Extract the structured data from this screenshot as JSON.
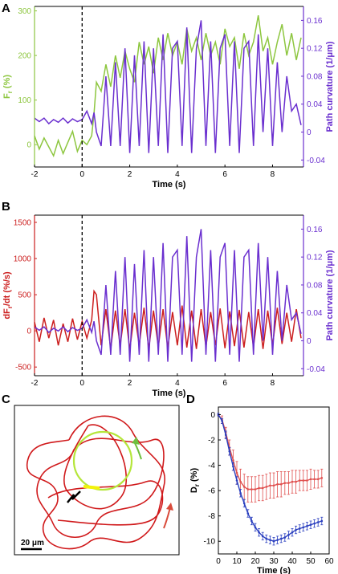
{
  "chart_data": [
    {
      "panel": "A",
      "type": "line",
      "xlabel": "Time (s)",
      "ylabel_left": "F",
      "ylabel_left_sub": "r",
      "ylabel_left_suffix": " (%)",
      "ylabel_right": "Path curvature (1/μm)",
      "xlim": [
        -2,
        9.3
      ],
      "ylim_left": [
        -50,
        310
      ],
      "ylim_right": [
        -0.05,
        0.18
      ],
      "xticks": [
        -2,
        0,
        2,
        4,
        6,
        8
      ],
      "yticks_left": [
        0,
        100,
        200,
        300
      ],
      "yticks_right": [
        -0.04,
        0,
        0.04,
        0.08,
        0.12,
        0.16
      ],
      "stimulus_line_x": 0,
      "series": [
        {
          "axis": "left",
          "color": "#8dc63f",
          "x": [
            -2,
            -1.8,
            -1.6,
            -1.4,
            -1.2,
            -1.0,
            -0.8,
            -0.6,
            -0.4,
            -0.2,
            0,
            0.2,
            0.4,
            0.5,
            0.6,
            0.8,
            1.0,
            1.2,
            1.4,
            1.6,
            1.8,
            2.0,
            2.2,
            2.4,
            2.6,
            2.8,
            3.0,
            3.2,
            3.4,
            3.6,
            3.8,
            4.0,
            4.2,
            4.4,
            4.6,
            4.8,
            5.0,
            5.2,
            5.4,
            5.6,
            5.8,
            6.0,
            6.2,
            6.4,
            6.6,
            6.8,
            7.0,
            7.2,
            7.4,
            7.6,
            7.8,
            8.0,
            8.2,
            8.4,
            8.6,
            8.8,
            9.0,
            9.2
          ],
          "values": [
            20,
            -10,
            15,
            -5,
            -25,
            10,
            -20,
            5,
            30,
            -15,
            10,
            0,
            20,
            70,
            140,
            120,
            180,
            130,
            200,
            150,
            210,
            170,
            140,
            230,
            180,
            220,
            160,
            240,
            190,
            250,
            200,
            230,
            180,
            260,
            210,
            240,
            190,
            250,
            200,
            230,
            180,
            260,
            220,
            240,
            170,
            250,
            200,
            230,
            290,
            210,
            240,
            180,
            230,
            270,
            200,
            250,
            190,
            240
          ]
        },
        {
          "axis": "right",
          "color": "#6a2fcf",
          "x": [
            -2,
            -1.8,
            -1.6,
            -1.4,
            -1.2,
            -1.0,
            -0.8,
            -0.6,
            -0.4,
            -0.2,
            0,
            0.2,
            0.4,
            0.5,
            0.6,
            0.8,
            1.0,
            1.2,
            1.4,
            1.6,
            1.8,
            2.0,
            2.2,
            2.4,
            2.6,
            2.8,
            3.0,
            3.2,
            3.4,
            3.6,
            3.8,
            4.0,
            4.2,
            4.4,
            4.6,
            4.8,
            5.0,
            5.2,
            5.4,
            5.6,
            5.8,
            6.0,
            6.2,
            6.4,
            6.6,
            6.8,
            7.0,
            7.2,
            7.4,
            7.6,
            7.8,
            8.0,
            8.2,
            8.4,
            8.6,
            8.8,
            9.0,
            9.2
          ],
          "values": [
            0.02,
            0.015,
            0.02,
            0.012,
            0.018,
            0.014,
            0.02,
            0.013,
            0.019,
            0.015,
            0.018,
            0.03,
            0.012,
            0.028,
            0.0,
            -0.02,
            0.08,
            -0.02,
            0.1,
            -0.02,
            0.12,
            -0.03,
            0.11,
            -0.02,
            0.13,
            -0.03,
            0.12,
            -0.02,
            0.14,
            -0.03,
            0.12,
            0.13,
            -0.02,
            0.15,
            -0.03,
            0.12,
            0.16,
            -0.02,
            0.13,
            -0.03,
            0.12,
            0.14,
            -0.02,
            0.13,
            -0.03,
            0.12,
            0.13,
            -0.02,
            0.14,
            0.0,
            0.12,
            -0.02,
            0.1,
            0.0,
            0.08,
            0.03,
            0.04,
            0.01
          ]
        }
      ]
    },
    {
      "panel": "B",
      "type": "line",
      "xlabel": "Time (s)",
      "ylabel_left": "dF",
      "ylabel_left_sub": "r",
      "ylabel_left_suffix": "/dt (%/s)",
      "ylabel_right": "Path curvature (1/μm)",
      "xlim": [
        -2,
        9.3
      ],
      "ylim_left": [
        -620,
        1600
      ],
      "ylim_right": [
        -0.05,
        0.18
      ],
      "xticks": [
        -2,
        0,
        2,
        4,
        6,
        8
      ],
      "yticks_left": [
        -500,
        0,
        500,
        1000,
        1500
      ],
      "yticks_right": [
        -0.04,
        0,
        0.04,
        0.08,
        0.12,
        0.16
      ],
      "stimulus_line_x": 0,
      "series": [
        {
          "axis": "left",
          "color": "#cc1f1f",
          "x": [
            -2,
            -1.8,
            -1.6,
            -1.4,
            -1.2,
            -1.0,
            -0.8,
            -0.6,
            -0.4,
            -0.2,
            0,
            0.2,
            0.4,
            0.5,
            0.6,
            0.8,
            1.0,
            1.2,
            1.4,
            1.6,
            1.8,
            2.0,
            2.2,
            2.4,
            2.6,
            2.8,
            3.0,
            3.2,
            3.4,
            3.6,
            3.8,
            4.0,
            4.2,
            4.4,
            4.6,
            4.8,
            5.0,
            5.2,
            5.4,
            5.6,
            5.8,
            6.0,
            6.2,
            6.4,
            6.6,
            6.8,
            7.0,
            7.2,
            7.4,
            7.6,
            7.8,
            8.0,
            8.2,
            8.4,
            8.6,
            8.8,
            9.0,
            9.2
          ],
          "values": [
            120,
            -150,
            180,
            -100,
            150,
            -200,
            100,
            -150,
            170,
            -120,
            130,
            -100,
            150,
            550,
            500,
            -200,
            300,
            -250,
            280,
            -200,
            300,
            -260,
            250,
            -200,
            320,
            -250,
            280,
            -220,
            300,
            -240,
            260,
            -200,
            350,
            -230,
            280,
            -250,
            300,
            -220,
            260,
            -200,
            310,
            -240,
            270,
            -210,
            290,
            -230,
            260,
            -220,
            300,
            -250,
            280,
            -200,
            320,
            -180,
            250,
            -150,
            300,
            -100
          ]
        },
        {
          "axis": "right",
          "color": "#6a2fcf",
          "x": [
            -2,
            -1.8,
            -1.6,
            -1.4,
            -1.2,
            -1.0,
            -0.8,
            -0.6,
            -0.4,
            -0.2,
            0,
            0.2,
            0.4,
            0.5,
            0.6,
            0.8,
            1.0,
            1.2,
            1.4,
            1.6,
            1.8,
            2.0,
            2.2,
            2.4,
            2.6,
            2.8,
            3.0,
            3.2,
            3.4,
            3.6,
            3.8,
            4.0,
            4.2,
            4.4,
            4.6,
            4.8,
            5.0,
            5.2,
            5.4,
            5.6,
            5.8,
            6.0,
            6.2,
            6.4,
            6.6,
            6.8,
            7.0,
            7.2,
            7.4,
            7.6,
            7.8,
            8.0,
            8.2,
            8.4,
            8.6,
            8.8,
            9.0,
            9.2
          ],
          "values": [
            0.02,
            0.015,
            0.02,
            0.012,
            0.018,
            0.014,
            0.02,
            0.013,
            0.019,
            0.015,
            0.018,
            0.03,
            0.012,
            0.028,
            0.0,
            -0.02,
            0.08,
            -0.02,
            0.1,
            -0.02,
            0.12,
            -0.03,
            0.11,
            -0.02,
            0.13,
            -0.03,
            0.12,
            -0.02,
            0.14,
            -0.03,
            0.12,
            0.13,
            -0.02,
            0.15,
            -0.03,
            0.12,
            0.16,
            -0.02,
            0.13,
            -0.03,
            0.12,
            0.14,
            -0.02,
            0.13,
            -0.03,
            0.12,
            0.13,
            -0.02,
            0.14,
            0.0,
            0.12,
            -0.02,
            0.1,
            0.0,
            0.08,
            0.03,
            0.04,
            0.01
          ]
        }
      ]
    },
    {
      "panel": "D",
      "type": "line",
      "xlabel": "Time (s)",
      "ylabel": "D",
      "ylabel_sub": "r",
      "ylabel_suffix": " (%)",
      "xlim": [
        0,
        60
      ],
      "ylim": [
        -11,
        0.6
      ],
      "xticks": [
        0,
        10,
        20,
        30,
        40,
        50,
        60
      ],
      "yticks": [
        0,
        -2,
        -4,
        -6,
        -8,
        -10
      ],
      "series": [
        {
          "color": "#e0504f",
          "x": [
            0,
            2,
            4,
            6,
            8,
            10,
            12,
            14,
            16,
            18,
            20,
            22,
            24,
            26,
            28,
            30,
            32,
            34,
            36,
            38,
            40,
            42,
            44,
            46,
            48,
            50,
            52,
            54,
            56
          ],
          "values": [
            0,
            -0.4,
            -1.4,
            -2.6,
            -3.6,
            -4.6,
            -5.3,
            -5.7,
            -5.9,
            -5.9,
            -5.9,
            -5.8,
            -5.8,
            -5.7,
            -5.6,
            -5.6,
            -5.5,
            -5.5,
            -5.4,
            -5.4,
            -5.3,
            -5.3,
            -5.2,
            -5.2,
            -5.2,
            -5.1,
            -5.1,
            -5.1,
            -5.0
          ],
          "error": [
            0.1,
            0.3,
            0.4,
            0.6,
            0.8,
            0.9,
            1.0,
            1.0,
            1.0,
            1.0,
            1.0,
            1.0,
            1.0,
            1.0,
            1.0,
            1.0,
            1.0,
            1.0,
            0.9,
            0.9,
            0.9,
            0.9,
            0.8,
            0.8,
            0.8,
            0.8,
            0.7,
            0.7,
            0.7
          ]
        },
        {
          "color": "#2a3fbf",
          "x": [
            0,
            2,
            4,
            6,
            8,
            10,
            12,
            14,
            16,
            18,
            20,
            22,
            24,
            26,
            28,
            30,
            32,
            34,
            36,
            38,
            40,
            42,
            44,
            46,
            48,
            50,
            52,
            54,
            56
          ],
          "values": [
            0,
            -0.5,
            -1.6,
            -2.9,
            -4.1,
            -5.2,
            -6.2,
            -7.0,
            -7.8,
            -8.4,
            -8.9,
            -9.3,
            -9.6,
            -9.8,
            -9.9,
            -10.0,
            -9.9,
            -9.8,
            -9.7,
            -9.5,
            -9.3,
            -9.1,
            -9.0,
            -8.9,
            -8.8,
            -8.7,
            -8.6,
            -8.5,
            -8.4
          ],
          "error": [
            0.1,
            0.2,
            0.3,
            0.3,
            0.3,
            0.3,
            0.3,
            0.3,
            0.3,
            0.3,
            0.3,
            0.3,
            0.3,
            0.3,
            0.3,
            0.3,
            0.3,
            0.3,
            0.3,
            0.3,
            0.3,
            0.3,
            0.3,
            0.3,
            0.3,
            0.3,
            0.3,
            0.3,
            0.3
          ]
        }
      ]
    }
  ],
  "panel_c": {
    "letter": "C",
    "scale_label": "20 μm",
    "colors": {
      "path": "#d0191b",
      "highlight": "#b5e63b",
      "marker": "#f2f20a",
      "arrow_green": "#6fbf3f",
      "arrow_red": "#d94b3b"
    }
  },
  "panel_letters": {
    "a": "A",
    "b": "B",
    "d": "D"
  }
}
